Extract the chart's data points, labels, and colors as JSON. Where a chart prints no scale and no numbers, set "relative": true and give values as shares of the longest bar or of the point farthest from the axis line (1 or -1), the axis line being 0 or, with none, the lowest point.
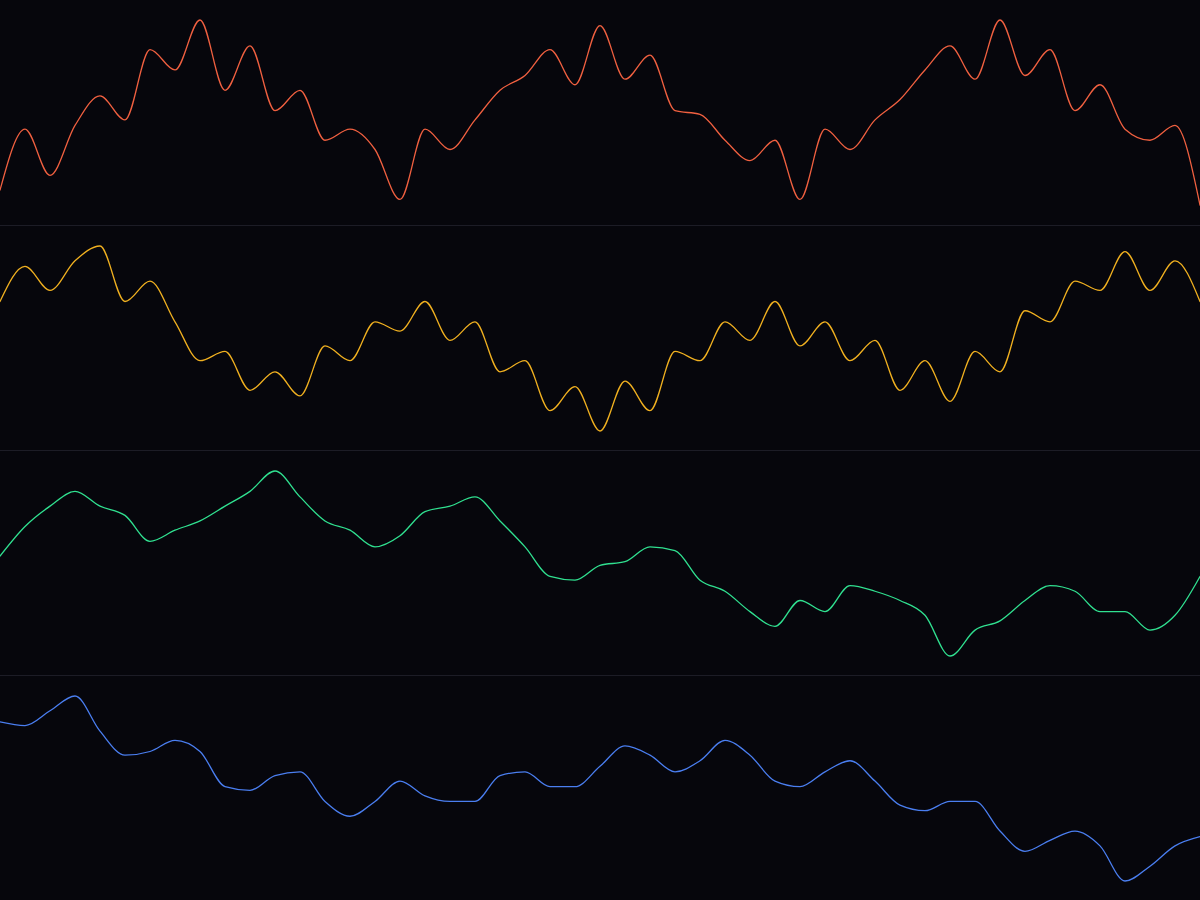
{
  "chart_data": [
    {
      "type": "line",
      "relative": true,
      "categories": [
        null,
        null,
        null,
        null,
        null,
        null,
        null,
        null,
        null,
        null,
        null,
        null,
        null,
        null,
        null,
        null,
        null,
        null,
        null,
        null,
        null,
        null,
        null,
        null,
        null,
        null,
        null,
        null,
        null,
        null,
        null,
        null,
        null,
        null,
        null,
        null,
        null,
        null,
        null,
        null,
        null,
        null,
        null,
        null,
        null,
        null,
        null,
        null,
        null
      ],
      "series": [
        {
          "color": "#f06040",
          "values": [
            0.08,
            0.41,
            0.16,
            0.43,
            0.59,
            0.46,
            0.84,
            0.73,
            1,
            0.62,
            0.86,
            0.51,
            0.62,
            0.35,
            0.41,
            0.3,
            0.03,
            0.41,
            0.3,
            0.46,
            0.62,
            0.7,
            0.84,
            0.65,
            0.97,
            0.68,
            0.81,
            0.51,
            0.49,
            0.35,
            0.24,
            0.35,
            0.03,
            0.41,
            0.3,
            0.46,
            0.57,
            0.73,
            0.86,
            0.68,
            1,
            0.7,
            0.84,
            0.51,
            0.65,
            0.41,
            0.35,
            0.43,
            0
          ]
        }
      ]
    },
    {
      "type": "line",
      "relative": true,
      "categories": [
        null,
        null,
        null,
        null,
        null,
        null,
        null,
        null,
        null,
        null,
        null,
        null,
        null,
        null,
        null,
        null,
        null,
        null,
        null,
        null,
        null,
        null,
        null,
        null,
        null,
        null,
        null,
        null,
        null,
        null,
        null,
        null,
        null,
        null,
        null,
        null,
        null,
        null,
        null,
        null,
        null,
        null,
        null,
        null,
        null,
        null,
        null,
        null,
        null
      ],
      "series": [
        {
          "color": "#f0b020",
          "values": [
            0.7,
            0.89,
            0.76,
            0.92,
            1,
            0.7,
            0.81,
            0.59,
            0.38,
            0.43,
            0.22,
            0.32,
            0.19,
            0.46,
            0.38,
            0.59,
            0.54,
            0.7,
            0.49,
            0.59,
            0.32,
            0.38,
            0.11,
            0.24,
            0,
            0.27,
            0.11,
            0.43,
            0.38,
            0.59,
            0.49,
            0.7,
            0.46,
            0.59,
            0.38,
            0.49,
            0.22,
            0.38,
            0.16,
            0.43,
            0.32,
            0.65,
            0.59,
            0.81,
            0.76,
            0.97,
            0.76,
            0.92,
            0.7
          ]
        }
      ]
    },
    {
      "type": "line",
      "relative": true,
      "categories": [
        null,
        null,
        null,
        null,
        null,
        null,
        null,
        null,
        null,
        null,
        null,
        null,
        null,
        null,
        null,
        null,
        null,
        null,
        null,
        null,
        null,
        null,
        null,
        null,
        null,
        null,
        null,
        null,
        null,
        null,
        null,
        null,
        null,
        null,
        null,
        null,
        null,
        null,
        null,
        null,
        null,
        null,
        null,
        null,
        null,
        null,
        null,
        null,
        null
      ],
      "series": [
        {
          "color": "#30e090",
          "values": [
            0.54,
            0.7,
            0.81,
            0.89,
            0.81,
            0.76,
            0.62,
            0.68,
            0.73,
            0.81,
            0.89,
            1,
            0.86,
            0.73,
            0.68,
            0.59,
            0.65,
            0.78,
            0.81,
            0.86,
            0.73,
            0.59,
            0.43,
            0.41,
            0.49,
            0.51,
            0.59,
            0.57,
            0.41,
            0.35,
            0.24,
            0.16,
            0.3,
            0.24,
            0.38,
            0.35,
            0.3,
            0.22,
            0,
            0.14,
            0.19,
            0.3,
            0.38,
            0.35,
            0.24,
            0.24,
            0.14,
            0.22,
            0.43
          ]
        }
      ]
    },
    {
      "type": "line",
      "relative": true,
      "categories": [
        null,
        null,
        null,
        null,
        null,
        null,
        null,
        null,
        null,
        null,
        null,
        null,
        null,
        null,
        null,
        null,
        null,
        null,
        null,
        null,
        null,
        null,
        null,
        null,
        null,
        null,
        null,
        null,
        null,
        null,
        null,
        null,
        null,
        null,
        null,
        null,
        null,
        null,
        null,
        null,
        null,
        null,
        null,
        null,
        null,
        null,
        null,
        null,
        null
      ],
      "series": [
        {
          "color": "#4a7ef0",
          "values": [
            0.86,
            0.84,
            0.92,
            1,
            0.81,
            0.68,
            0.7,
            0.76,
            0.7,
            0.51,
            0.49,
            0.57,
            0.59,
            0.43,
            0.35,
            0.43,
            0.54,
            0.46,
            0.43,
            0.43,
            0.57,
            0.59,
            0.51,
            0.51,
            0.62,
            0.73,
            0.68,
            0.59,
            0.65,
            0.76,
            0.68,
            0.54,
            0.51,
            0.59,
            0.65,
            0.54,
            0.41,
            0.38,
            0.43,
            0.43,
            0.27,
            0.16,
            0.22,
            0.27,
            0.19,
            0,
            0.08,
            0.19,
            0.24
          ]
        }
      ]
    }
  ]
}
